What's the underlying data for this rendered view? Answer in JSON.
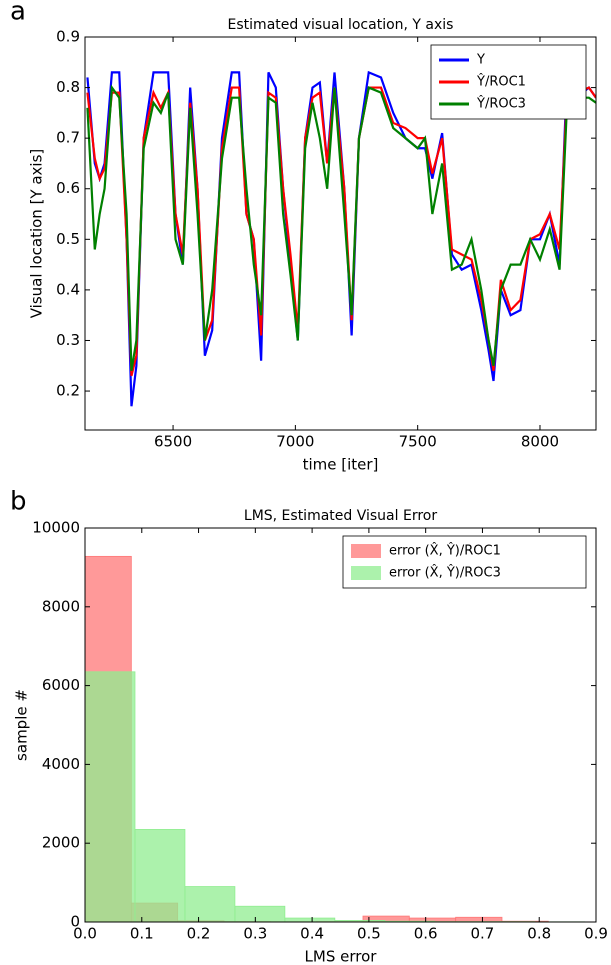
{
  "chart_data": [
    {
      "type": "line",
      "panel": "a",
      "title": "Estimated visual location, Y axis",
      "xlabel": "time [iter]",
      "ylabel": "Visual location [Y axis]",
      "xlim": [
        6140,
        8229
      ],
      "ylim": [
        0.123,
        0.9
      ],
      "xticks": [
        6500,
        7000,
        7500,
        8000
      ],
      "yticks": [
        0.2,
        0.3,
        0.4,
        0.5,
        0.6,
        0.7,
        0.8,
        0.9
      ],
      "legend": "upper right",
      "x": [
        6150,
        6180,
        6200,
        6220,
        6250,
        6280,
        6310,
        6330,
        6350,
        6380,
        6420,
        6450,
        6480,
        6510,
        6540,
        6570,
        6600,
        6630,
        6660,
        6700,
        6740,
        6770,
        6800,
        6830,
        6860,
        6890,
        6920,
        6950,
        6980,
        7010,
        7040,
        7070,
        7100,
        7130,
        7160,
        7200,
        7230,
        7260,
        7300,
        7350,
        7400,
        7450,
        7500,
        7530,
        7560,
        7600,
        7640,
        7680,
        7720,
        7760,
        7790,
        7810,
        7840,
        7880,
        7920,
        7960,
        8000,
        8040,
        8080,
        8110,
        8150,
        8200,
        8229
      ],
      "series": [
        {
          "name": "Y",
          "color": "#0000ff",
          "values": [
            0.82,
            0.65,
            0.62,
            0.65,
            0.83,
            0.83,
            0.5,
            0.17,
            0.25,
            0.7,
            0.83,
            0.83,
            0.83,
            0.55,
            0.45,
            0.8,
            0.6,
            0.27,
            0.32,
            0.7,
            0.83,
            0.83,
            0.55,
            0.5,
            0.26,
            0.83,
            0.8,
            0.6,
            0.45,
            0.3,
            0.7,
            0.8,
            0.81,
            0.65,
            0.83,
            0.6,
            0.31,
            0.7,
            0.83,
            0.82,
            0.75,
            0.7,
            0.68,
            0.68,
            0.62,
            0.71,
            0.47,
            0.44,
            0.45,
            0.36,
            0.28,
            0.22,
            0.4,
            0.35,
            0.36,
            0.5,
            0.5,
            0.55,
            0.45,
            0.82,
            0.78,
            0.8,
            0.78
          ]
        },
        {
          "name": "Ŷ/ROC1",
          "color": "#ff0000",
          "values": [
            0.79,
            0.66,
            0.62,
            0.64,
            0.79,
            0.79,
            0.5,
            0.23,
            0.27,
            0.7,
            0.79,
            0.76,
            0.79,
            0.55,
            0.47,
            0.77,
            0.6,
            0.3,
            0.34,
            0.68,
            0.8,
            0.8,
            0.55,
            0.5,
            0.31,
            0.79,
            0.78,
            0.6,
            0.47,
            0.32,
            0.7,
            0.78,
            0.79,
            0.65,
            0.8,
            0.6,
            0.34,
            0.7,
            0.8,
            0.8,
            0.73,
            0.72,
            0.7,
            0.7,
            0.63,
            0.7,
            0.48,
            0.47,
            0.46,
            0.38,
            0.3,
            0.24,
            0.42,
            0.36,
            0.38,
            0.5,
            0.51,
            0.55,
            0.48,
            0.78,
            0.79,
            0.8,
            0.78
          ]
        },
        {
          "name": "Ŷ/ROC3",
          "color": "#008000",
          "values": [
            0.76,
            0.48,
            0.55,
            0.6,
            0.8,
            0.78,
            0.55,
            0.24,
            0.3,
            0.68,
            0.77,
            0.75,
            0.79,
            0.5,
            0.45,
            0.76,
            0.55,
            0.3,
            0.4,
            0.66,
            0.78,
            0.78,
            0.6,
            0.45,
            0.35,
            0.78,
            0.77,
            0.55,
            0.43,
            0.3,
            0.68,
            0.77,
            0.7,
            0.6,
            0.8,
            0.55,
            0.35,
            0.7,
            0.8,
            0.79,
            0.72,
            0.7,
            0.68,
            0.7,
            0.55,
            0.65,
            0.44,
            0.45,
            0.5,
            0.4,
            0.3,
            0.25,
            0.4,
            0.45,
            0.45,
            0.5,
            0.46,
            0.52,
            0.44,
            0.76,
            0.78,
            0.78,
            0.77
          ]
        }
      ]
    },
    {
      "type": "histogram",
      "panel": "b",
      "title": "LMS, Estimated Visual Error",
      "xlabel": "LMS error",
      "ylabel": "sample #",
      "xlim": [
        0,
        0.9
      ],
      "ylim": [
        0,
        10000
      ],
      "xticks": [
        {
          "value": 0,
          "label": "0.0"
        },
        0.1,
        0.2,
        0.3,
        0.4,
        0.5,
        0.6,
        0.7,
        0.8,
        0.9
      ],
      "yticks": [
        0,
        2000,
        4000,
        6000,
        8000,
        10000
      ],
      "legend": "upper right",
      "series": [
        {
          "name": "error (X̂, Ŷ)/ROC1",
          "color": "#ff7777",
          "bins": [
            0,
            0.0816,
            0.1632,
            0.2448,
            0.3264,
            0.408,
            0.4896,
            0.5712,
            0.6528,
            0.7344,
            0.816
          ],
          "values": [
            9280,
            480,
            30,
            10,
            5,
            10,
            150,
            100,
            120,
            20
          ]
        },
        {
          "name": "error (X̂, Ŷ)/ROC3",
          "color": "#90ee90",
          "bins": [
            0,
            0.088,
            0.176,
            0.264,
            0.352,
            0.44,
            0.528,
            0.616,
            0.704,
            0.792,
            0.88
          ],
          "values": [
            6350,
            2350,
            900,
            400,
            100,
            40,
            20,
            10,
            10,
            5
          ]
        }
      ]
    }
  ]
}
